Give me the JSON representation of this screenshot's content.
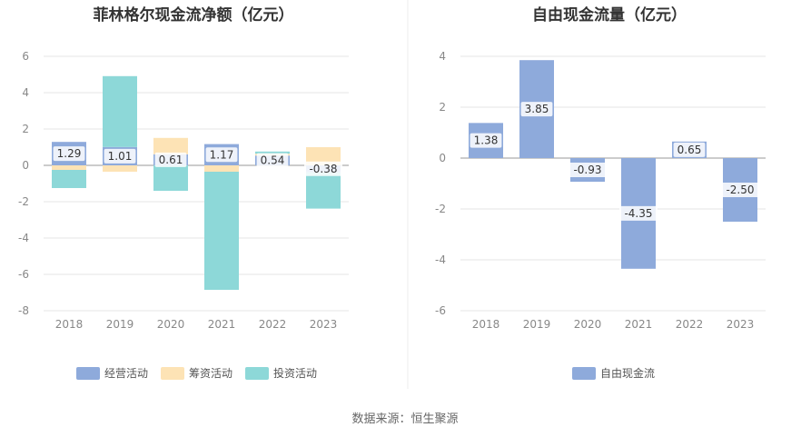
{
  "colors": {
    "operating": "#8eaadb",
    "financing": "#fde3b5",
    "investing": "#8dd8d8",
    "fcf": "#8eaadb",
    "grid": "#e6e6e6",
    "axis": "#999999",
    "label_bg": "#ffffff"
  },
  "chart_data": [
    {
      "type": "bar",
      "stacked": true,
      "title": "菲林格尔现金流净额（亿元）",
      "categories": [
        "2018",
        "2019",
        "2020",
        "2021",
        "2022",
        "2023"
      ],
      "ylim": [
        -8,
        6
      ],
      "yticks": [
        "6",
        "4",
        "2",
        "0",
        "-2",
        "-4",
        "-6",
        "-8"
      ],
      "ytick_values": [
        6,
        4,
        2,
        0,
        -2,
        -4,
        -6,
        -8
      ],
      "legend_position": "bottom",
      "series": [
        {
          "name": "经营活动",
          "color_key": "operating",
          "values": [
            1.29,
            1.01,
            0.61,
            1.17,
            0.54,
            -0.38
          ]
        },
        {
          "name": "筹资活动",
          "color_key": "financing",
          "values": [
            -0.25,
            -0.35,
            0.9,
            -0.35,
            0.1,
            1.0
          ]
        },
        {
          "name": "投资活动",
          "color_key": "investing",
          "values": [
            -1.0,
            3.9,
            -1.4,
            -6.5,
            0.12,
            -2.0
          ]
        }
      ],
      "data_labels": [
        "1.29",
        "1.01",
        "0.61",
        "1.17",
        "0.54",
        "-0.38"
      ]
    },
    {
      "type": "bar",
      "title": "自由现金流量（亿元）",
      "categories": [
        "2018",
        "2019",
        "2020",
        "2021",
        "2022",
        "2023"
      ],
      "ylim": [
        -6,
        4
      ],
      "yticks": [
        "4",
        "2",
        "0",
        "-2",
        "-4",
        "-6"
      ],
      "ytick_values": [
        4,
        2,
        0,
        -2,
        -4,
        -6
      ],
      "legend_position": "bottom",
      "series": [
        {
          "name": "自由现金流",
          "color_key": "fcf",
          "values": [
            1.38,
            3.85,
            -0.93,
            -4.35,
            0.65,
            -2.5
          ]
        }
      ],
      "data_labels": [
        "1.38",
        "3.85",
        "-0.93",
        "-4.35",
        "0.65",
        "-2.50"
      ]
    }
  ],
  "source_text": "数据来源：恒生聚源"
}
